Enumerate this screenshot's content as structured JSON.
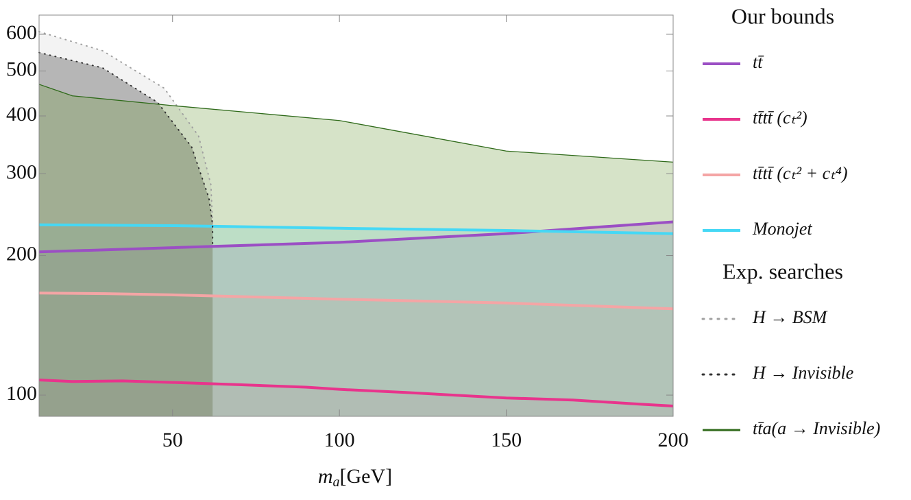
{
  "chart_data": {
    "type": "line",
    "x_label": {
      "var": "m",
      "sub": "a",
      "unit": "[GeV]"
    },
    "xlim": [
      10,
      200
    ],
    "xticks": [
      50,
      100,
      150,
      200
    ],
    "ylim": [
      90,
      660
    ],
    "yticks": [
      100,
      200,
      300,
      400,
      500,
      600
    ],
    "log_y": true,
    "groups": [
      {
        "title": "Our bounds",
        "series": [
          {
            "name": "tt̄",
            "color": "#9b4fc4",
            "fill_opacity": 0.2,
            "width": 4,
            "x": [
              10,
              100,
              150,
              200
            ],
            "values": [
              203.6,
              213.5,
              223,
              236.4
            ]
          },
          {
            "name": "tt̄tt̄ (cₜ²)",
            "color": "#e8348c",
            "fill_opacity": 0.08,
            "width": 4,
            "x": [
              10,
              20,
              35,
              50,
              70,
              90,
              100,
              120,
              150,
              170,
              190,
              200
            ],
            "values": [
              107.8,
              107,
              107.3,
              106.5,
              105.3,
              104,
              102.9,
              101.3,
              98.6,
              97.6,
              95.6,
              94.7
            ]
          },
          {
            "name": "tt̄tt̄ (cₜ² + cₜ⁴)",
            "color": "#f4a5a5",
            "fill_opacity": 0.15,
            "width": 4,
            "x": [
              10,
              30,
              50,
              100,
              150,
              200
            ],
            "values": [
              166,
              165.5,
              164.5,
              161,
              158,
              153.5
            ]
          },
          {
            "name": "Monojet",
            "color": "#45d8f5",
            "fill_opacity": 0.18,
            "width": 4,
            "x": [
              10,
              50,
              100,
              150,
              200
            ],
            "values": [
              233,
              232,
              229,
              226.5,
              223
            ]
          }
        ]
      },
      {
        "title": "Exp. searches",
        "series": [
          {
            "name": "H → BSM",
            "color": "#a0a0a0",
            "fill": "#e4e4e4",
            "fill_opacity": 0.45,
            "dash": "dotted",
            "width": 2,
            "x": [
              10,
              29,
              47.5,
              57.8,
              61.5,
              62
            ],
            "values": [
              608,
              553,
              459,
              362,
              284,
              233
            ]
          },
          {
            "name": "H → Invisible",
            "color": "#333333",
            "fill": "#555555",
            "fill_opacity": 0.38,
            "dash": "dotted",
            "width": 2,
            "x": [
              10,
              29,
              45.5,
              55.7,
              60.9,
              62,
              62
            ],
            "values": [
              548,
              508,
              428,
              343,
              266,
              233,
              211
            ]
          },
          {
            "name": "tt̄a(a → Invisible)",
            "color": "#2f6a1a",
            "fill": "#6a9a3a",
            "fill_opacity": 0.28,
            "width": 1.3,
            "x": [
              10,
              20,
              50,
              100,
              150,
              200
            ],
            "values": [
              468,
              442,
              421,
              391,
              336,
              318
            ]
          }
        ]
      }
    ]
  }
}
